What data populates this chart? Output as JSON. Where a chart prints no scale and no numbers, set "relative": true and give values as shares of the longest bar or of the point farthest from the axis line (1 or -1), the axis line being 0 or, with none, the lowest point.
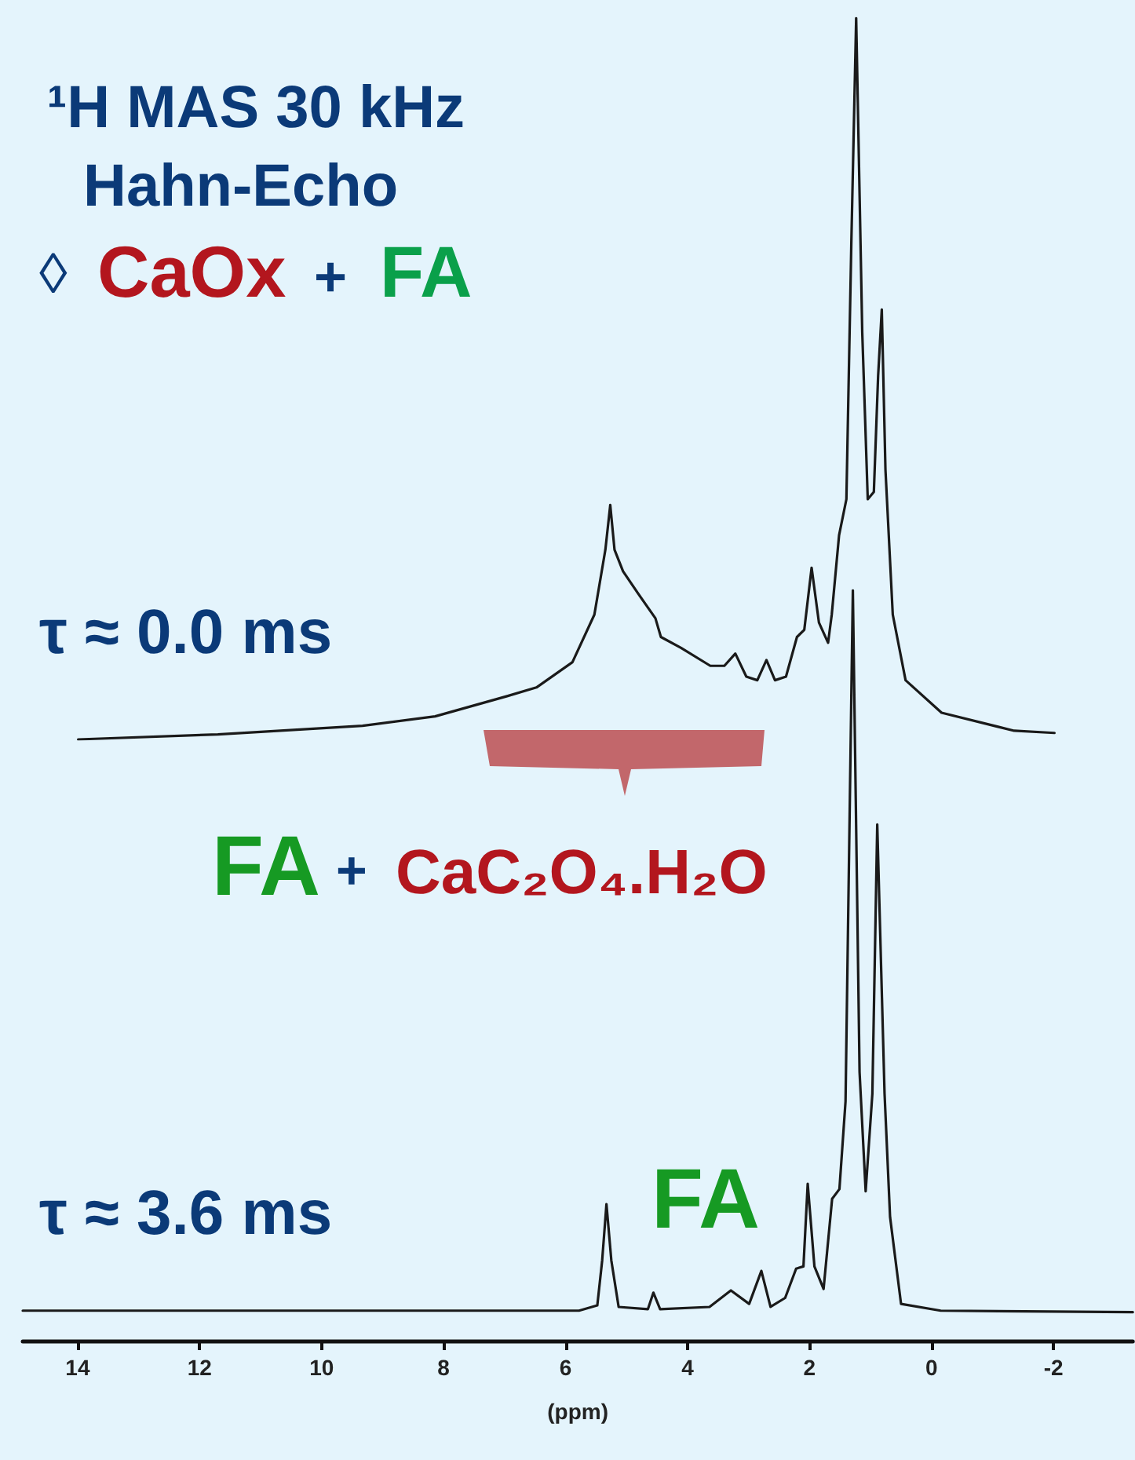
{
  "chart_data": [
    {
      "type": "line",
      "title": "¹H MAS 30 kHz",
      "subtitle": "Hahn-Echo",
      "relative": true,
      "xlim": [
        14,
        -2
      ],
      "xticks": [
        14,
        12,
        10,
        8,
        6,
        4,
        2,
        0,
        -2
      ],
      "tick_labels": false,
      "grid": false,
      "marker": "none",
      "line_style": "solid",
      "annotations": [
        "◊",
        "CaOx",
        "+",
        "FA",
        "τ ≈ 0.0 ms"
      ],
      "series": [
        {
          "color": "#1a1a1a",
          "x": [
            14,
            11.71,
            9.34,
            8.15,
            6.97,
            6.49,
            5.9,
            5.54,
            5.36,
            5.28,
            5.21,
            5.07,
            4.83,
            4.54,
            4.45,
            4.12,
            3.64,
            3.41,
            3.23,
            3.05,
            2.87,
            2.72,
            2.58,
            2.4,
            2.22,
            2.1,
            1.98,
            1.86,
            1.71,
            1.65,
            1.53,
            1.41,
            1.33,
            1.25,
            1.15,
            1.06,
            0.96,
            0.89,
            0.83,
            0.77,
            0.65,
            0.44,
            -0.15,
            -1.34,
            -2
          ],
          "values": [
            0,
            0.007,
            0.019,
            0.032,
            0.06,
            0.072,
            0.107,
            0.173,
            0.263,
            0.325,
            0.263,
            0.233,
            0.203,
            0.168,
            0.142,
            0.127,
            0.102,
            0.102,
            0.119,
            0.087,
            0.082,
            0.11,
            0.082,
            0.087,
            0.142,
            0.152,
            0.238,
            0.162,
            0.134,
            0.173,
            0.283,
            0.333,
            0.684,
            1,
            0.564,
            0.333,
            0.343,
            0.504,
            0.596,
            0.374,
            0.173,
            0.082,
            0.037,
            0.012,
            0.009
          ]
        }
      ]
    },
    {
      "type": "line",
      "xlabel": "(ppm)",
      "relative": true,
      "xlim": [
        14.9,
        -3.3
      ],
      "xticks": [
        14,
        12,
        10,
        8,
        6,
        4,
        2,
        0,
        -2
      ],
      "tick_labels": "x",
      "grid": false,
      "marker": "none",
      "line_style": "solid",
      "annotations": [
        "FA",
        "+",
        "CaC₂O₄.H₂O",
        "τ ≈ 3.6 ms",
        "FA"
      ],
      "series": [
        {
          "color": "#1a1a1a",
          "x": [
            14.9,
            5.78,
            5.48,
            5.4,
            5.33,
            5.25,
            5.13,
            4.65,
            4.56,
            4.45,
            3.64,
            3.29,
            2.99,
            2.79,
            2.64,
            2.4,
            2.22,
            2.1,
            2.03,
            1.92,
            1.77,
            1.63,
            1.51,
            1.41,
            1.29,
            1.18,
            1.08,
            0.97,
            0.89,
            0.77,
            0.68,
            0.5,
            -0.15,
            -3.3
          ],
          "values": [
            0.04,
            0.04,
            0.047,
            0.107,
            0.182,
            0.107,
            0.045,
            0.042,
            0.064,
            0.042,
            0.045,
            0.067,
            0.049,
            0.093,
            0.045,
            0.057,
            0.096,
            0.099,
            0.209,
            0.099,
            0.069,
            0.189,
            0.202,
            0.319,
            1,
            0.358,
            0.199,
            0.329,
            0.688,
            0.329,
            0.165,
            0.049,
            0.04,
            0.038
          ]
        }
      ]
    }
  ]
}
